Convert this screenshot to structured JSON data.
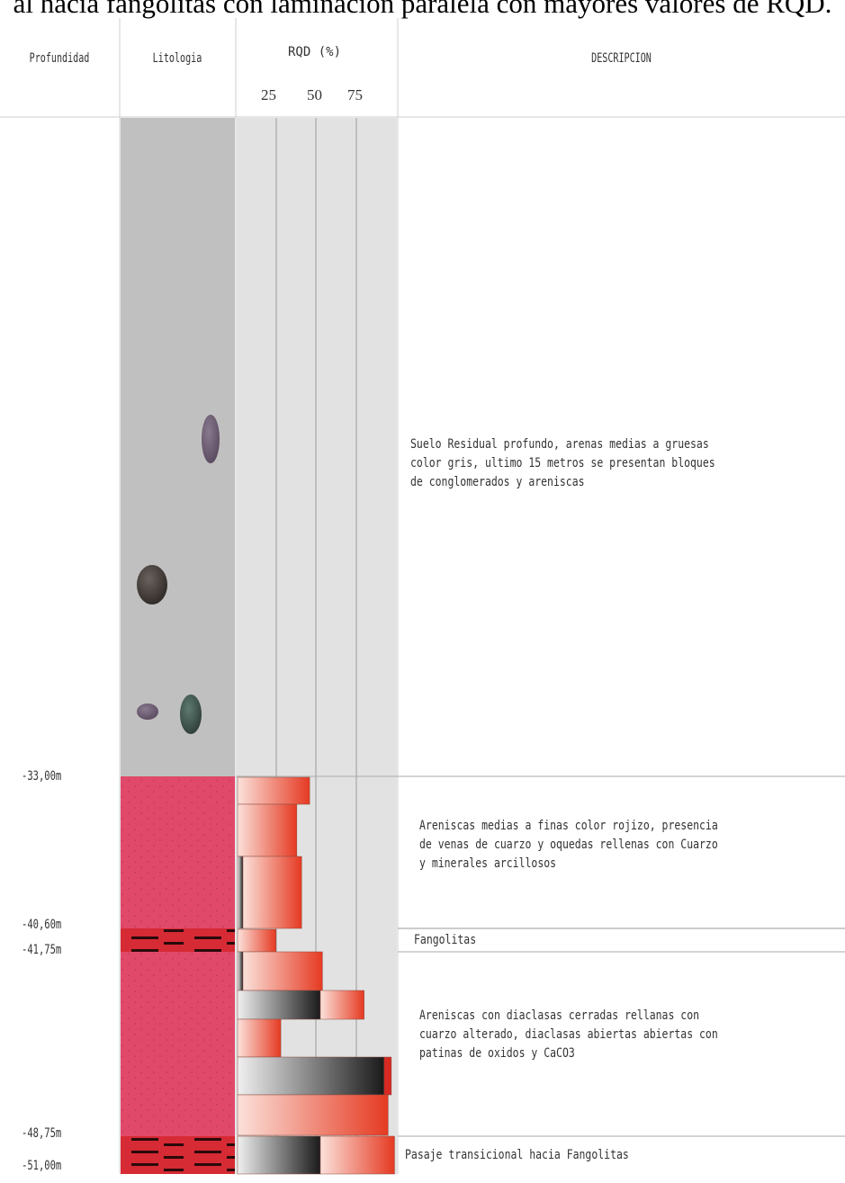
{
  "caption": "al hacia fangolitas con laminación paralela con mayores valores de RQD.",
  "headers": {
    "depth": "Profundidad",
    "lithology": "Litologia",
    "rqd": "RQD (%)",
    "description": "DESCRIPCION"
  },
  "rqd_ticks": [
    "25",
    "50",
    "75"
  ],
  "depths": [
    "-33,00m",
    "-40,60m",
    "-41,75m",
    "-48,75m",
    "-51,00m"
  ],
  "units": [
    {
      "lithology": "suelo residual",
      "color": "#c0c0c0",
      "description": "Suelo Residual profundo, arenas medias a gruesas\ncolor gris, ultimo 15 metros se presentan bloques\nde conglomerados y areniscas"
    },
    {
      "lithology": "arenisca",
      "color": "#e0496a",
      "description": "Areniscas medias a finas color rojizo, presencia\nde venas de cuarzo y oquedas rellenas con Cuarzo\ny minerales arcillosos"
    },
    {
      "lithology": "fangolita",
      "color": "#d62a35",
      "description": "Fangolitas"
    },
    {
      "lithology": "arenisca",
      "color": "#e0496a",
      "description": "Areniscas con diaclasas cerradas rellanas con\ncuarzo alterado, diaclasas abiertas abiertas con\npatinas de oxidos y CaCO3"
    },
    {
      "lithology": "fangolita",
      "color": "#d62a35",
      "description": "Pasaje transicional hacia Fangolitas"
    }
  ],
  "rqd_bars": [
    {
      "value": 45,
      "style": "red"
    },
    {
      "value": 37,
      "style": "red"
    },
    {
      "value": 40,
      "style": "red-dark-start"
    },
    {
      "value": 24,
      "style": "red"
    },
    {
      "value": 53,
      "style": "red-dark-start"
    },
    {
      "value": 79,
      "style": "gray-then-red"
    },
    {
      "value": 27,
      "style": "red"
    },
    {
      "value": 96,
      "style": "gray-full"
    },
    {
      "value": 94,
      "style": "red"
    },
    {
      "value": 98,
      "style": "gray-then-red"
    }
  ],
  "colors": {
    "soil": "#c0c0c0",
    "sandstone": "#e0496a",
    "mudstone": "#d62a35",
    "rqd_background": "#e2e2e2"
  }
}
